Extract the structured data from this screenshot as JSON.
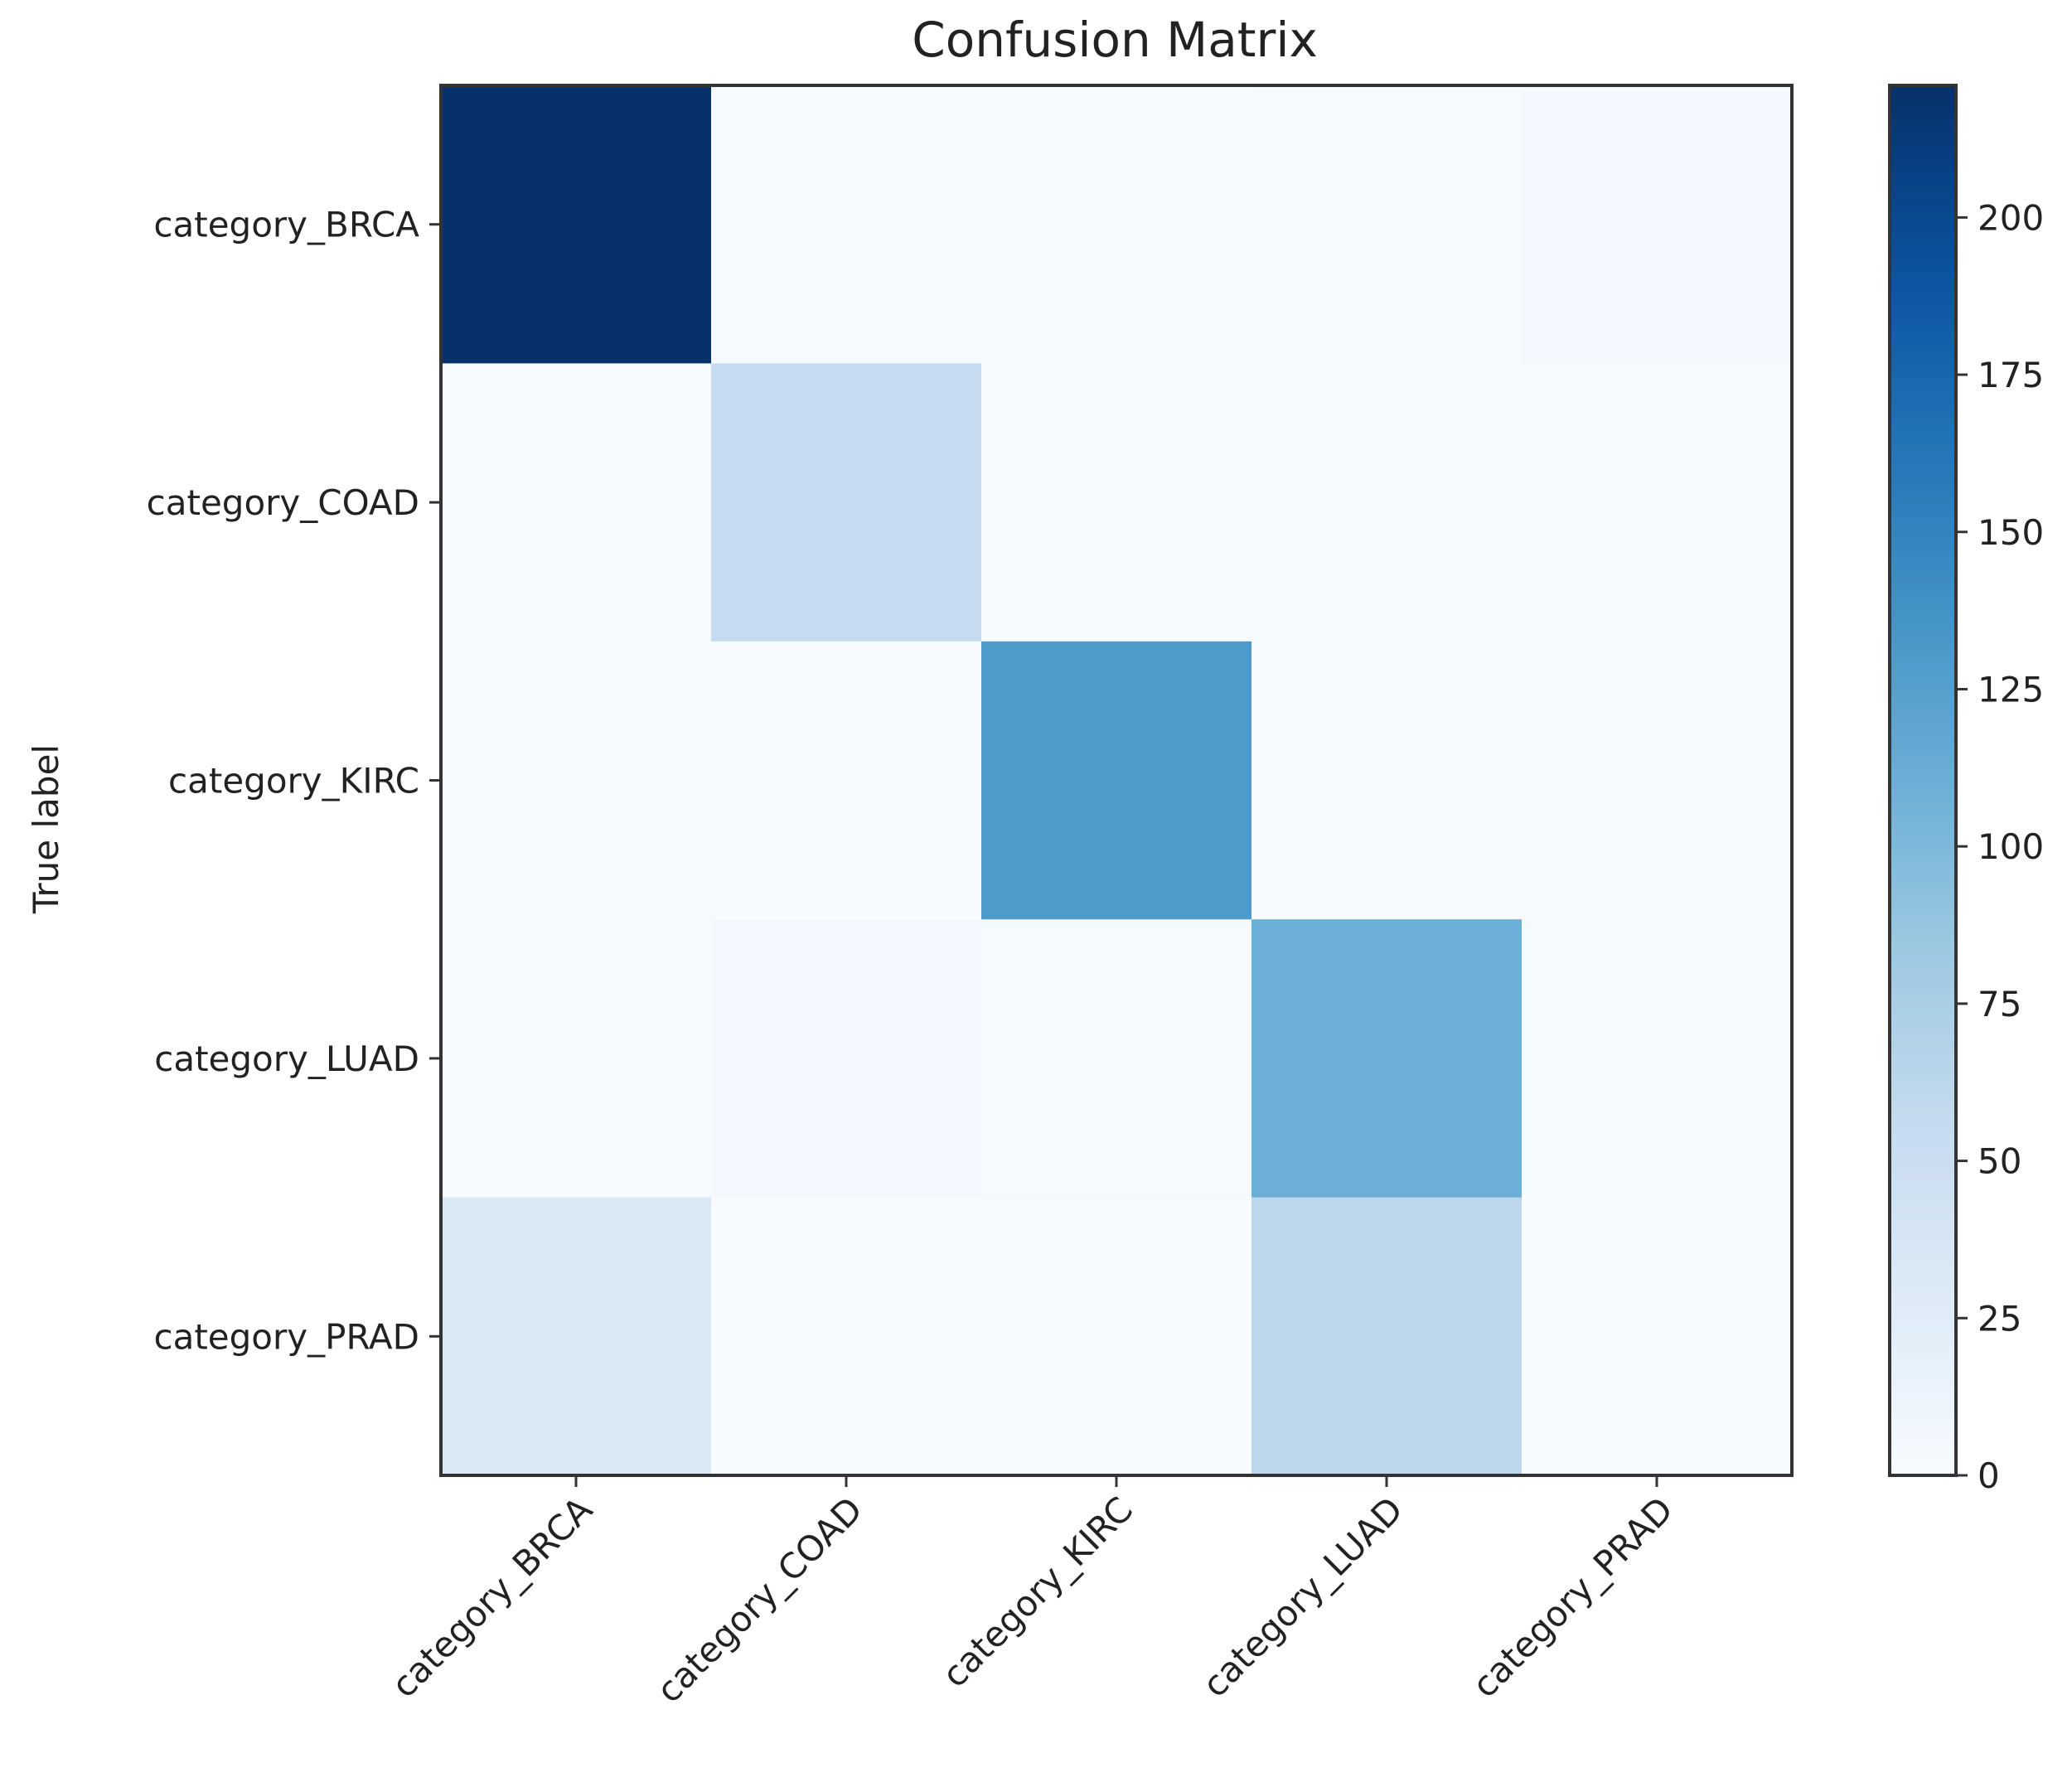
{
  "chart_data": {
    "type": "heatmap",
    "title": "Confusion Matrix",
    "ylabel": "True label",
    "xlabel": "",
    "row_labels": [
      "category_BRCA",
      "category_COAD",
      "category_KIRC",
      "category_LUAD",
      "category_PRAD"
    ],
    "col_labels": [
      "category_BRCA",
      "category_COAD",
      "category_KIRC",
      "category_LUAD",
      "category_PRAD"
    ],
    "matrix": [
      [
        221,
        0,
        0,
        2,
        5
      ],
      [
        0,
        55,
        0,
        0,
        0
      ],
      [
        0,
        0,
        130,
        0,
        0
      ],
      [
        1,
        6,
        2,
        110,
        2
      ],
      [
        32,
        0,
        0,
        62,
        1
      ]
    ],
    "colorbar": {
      "min": 0,
      "max": 221,
      "ticks": [
        0,
        25,
        50,
        75,
        100,
        125,
        150,
        175,
        200
      ],
      "colormap": "Blues"
    }
  }
}
